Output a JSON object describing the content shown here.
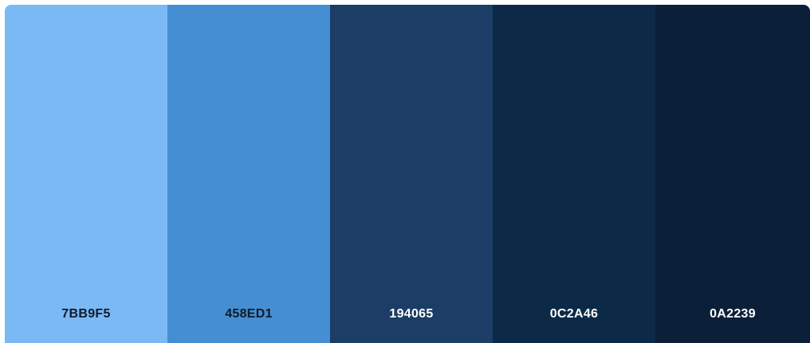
{
  "palette": {
    "swatches": [
      {
        "hex": "7BB9F5",
        "color": "#7BB9F5",
        "text_color": "#0f1b2d"
      },
      {
        "hex": "458ED1",
        "color": "#458ED1",
        "text_color": "#0f1b2d"
      },
      {
        "hex": "194065",
        "color": "#1B3D66",
        "text_color": "#ffffff"
      },
      {
        "hex": "0C2A46",
        "color": "#0C2A47",
        "text_color": "#ffffff"
      },
      {
        "hex": "0A2239",
        "color": "#0C1F38",
        "text_color": "#ffffff"
      }
    ]
  }
}
